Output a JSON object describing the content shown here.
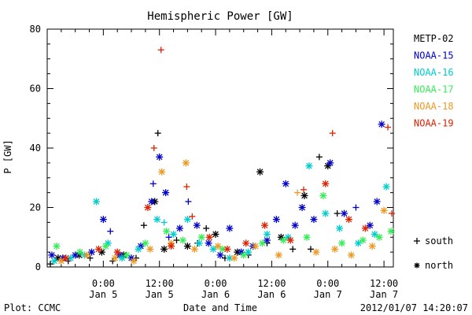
{
  "chart_data": {
    "type": "scatter",
    "title": "Hemispheric Power [GW]",
    "xlabel": "Date and Time",
    "ylabel": "P [GW]",
    "ylim": [
      0,
      80
    ],
    "yticks": [
      0,
      20,
      40,
      60,
      80
    ],
    "xlim": [
      "2012-01-04 12:00",
      "2012-01-07 14:00"
    ],
    "x_ticks": [
      {
        "at": "2012-01-05 00:00",
        "time": "0:00",
        "date": "Jan 5"
      },
      {
        "at": "2012-01-05 12:00",
        "time": "12:00",
        "date": "Jan 5"
      },
      {
        "at": "2012-01-06 00:00",
        "time": "0:00",
        "date": "Jan 6"
      },
      {
        "at": "2012-01-06 12:00",
        "time": "12:00",
        "date": "Jan 6"
      },
      {
        "at": "2012-01-07 00:00",
        "time": "0:00",
        "date": "Jan 7"
      },
      {
        "at": "2012-01-07 12:00",
        "time": "12:00",
        "date": "Jan 7"
      }
    ],
    "legend_position": "right",
    "symbol_legend": [
      {
        "symbol": "+",
        "label": "south"
      },
      {
        "symbol": "*",
        "label": "north"
      }
    ],
    "series": [
      {
        "name": "METP-02",
        "color": "#000000",
        "points": [
          [
            "2012-01-04 12:40",
            1,
            "+"
          ],
          [
            "2012-01-04 14:20",
            3,
            "*"
          ],
          [
            "2012-01-04 16:30",
            2,
            "+"
          ],
          [
            "2012-01-04 18:50",
            4,
            "*"
          ],
          [
            "2012-01-04 21:10",
            3,
            "+"
          ],
          [
            "2012-01-04 23:40",
            5,
            "*"
          ],
          [
            "2012-01-05 02:00",
            2,
            "+"
          ],
          [
            "2012-01-05 04:20",
            4,
            "*"
          ],
          [
            "2012-01-05 07:00",
            3,
            "+"
          ],
          [
            "2012-01-05 08:40",
            14,
            "+"
          ],
          [
            "2012-01-05 11:00",
            22,
            "*"
          ],
          [
            "2012-01-05 11:40",
            45,
            "+"
          ],
          [
            "2012-01-05 13:00",
            6,
            "*"
          ],
          [
            "2012-01-05 15:40",
            9,
            "+"
          ],
          [
            "2012-01-05 18:00",
            7,
            "*"
          ],
          [
            "2012-01-05 20:10",
            8,
            "+"
          ],
          [
            "2012-01-05 22:00",
            13,
            "+"
          ],
          [
            "2012-01-06 00:00",
            11,
            "*"
          ],
          [
            "2012-01-06 02:00",
            3,
            "+"
          ],
          [
            "2012-01-06 04:40",
            5,
            "*"
          ],
          [
            "2012-01-06 07:00",
            4,
            "+"
          ],
          [
            "2012-01-06 09:30",
            32,
            "*"
          ],
          [
            "2012-01-06 11:00",
            8,
            "+"
          ],
          [
            "2012-01-06 14:00",
            10,
            "*"
          ],
          [
            "2012-01-06 16:30",
            6,
            "+"
          ],
          [
            "2012-01-06 19:00",
            24,
            "*"
          ],
          [
            "2012-01-06 20:20",
            6,
            "+"
          ],
          [
            "2012-01-06 22:10",
            37,
            "+"
          ],
          [
            "2012-01-07 00:00",
            34,
            "*"
          ],
          [
            "2012-01-07 02:00",
            18,
            "+"
          ]
        ]
      },
      {
        "name": "NOAA-15",
        "color": "#0000cc",
        "points": [
          [
            "2012-01-04 13:00",
            4,
            "*"
          ],
          [
            "2012-01-04 15:20",
            3,
            "*"
          ],
          [
            "2012-01-04 18:00",
            4,
            "*"
          ],
          [
            "2012-01-04 21:30",
            5,
            "*"
          ],
          [
            "2012-01-05 00:00",
            16,
            "*"
          ],
          [
            "2012-01-05 01:30",
            12,
            "+"
          ],
          [
            "2012-01-05 03:30",
            4,
            "*"
          ],
          [
            "2012-01-05 06:00",
            3,
            "*"
          ],
          [
            "2012-01-05 08:00",
            7,
            "*"
          ],
          [
            "2012-01-05 10:20",
            22,
            "*"
          ],
          [
            "2012-01-05 10:40",
            28,
            "+"
          ],
          [
            "2012-01-05 12:00",
            37,
            "*"
          ],
          [
            "2012-01-05 13:20",
            25,
            "*"
          ],
          [
            "2012-01-05 14:00",
            10,
            "+"
          ],
          [
            "2012-01-05 16:20",
            13,
            "*"
          ],
          [
            "2012-01-05 18:10",
            22,
            "+"
          ],
          [
            "2012-01-05 20:00",
            14,
            "*"
          ],
          [
            "2012-01-05 22:30",
            8,
            "*"
          ],
          [
            "2012-01-06 01:00",
            4,
            "*"
          ],
          [
            "2012-01-06 03:00",
            13,
            "*"
          ],
          [
            "2012-01-06 05:30",
            5,
            "*"
          ],
          [
            "2012-01-06 08:00",
            7,
            "*"
          ],
          [
            "2012-01-06 11:00",
            9,
            "*"
          ],
          [
            "2012-01-06 13:00",
            16,
            "*"
          ],
          [
            "2012-01-06 15:00",
            28,
            "*"
          ],
          [
            "2012-01-06 17:00",
            14,
            "*"
          ],
          [
            "2012-01-06 18:30",
            20,
            "*"
          ],
          [
            "2012-01-06 21:00",
            16,
            "*"
          ],
          [
            "2012-01-07 00:30",
            35,
            "*"
          ],
          [
            "2012-01-07 03:30",
            18,
            "*"
          ],
          [
            "2012-01-07 06:00",
            20,
            "+"
          ],
          [
            "2012-01-07 09:00",
            14,
            "*"
          ],
          [
            "2012-01-07 10:30",
            22,
            "*"
          ],
          [
            "2012-01-07 11:30",
            48,
            "*"
          ]
        ]
      },
      {
        "name": "NOAA-16",
        "color": "#00cccc",
        "points": [
          [
            "2012-01-04 13:30",
            2,
            "*"
          ],
          [
            "2012-01-04 17:00",
            3,
            "*"
          ],
          [
            "2012-01-04 20:00",
            4,
            "*"
          ],
          [
            "2012-01-04 22:30",
            22,
            "*"
          ],
          [
            "2012-01-05 01:00",
            8,
            "*"
          ],
          [
            "2012-01-05 04:00",
            3,
            "*"
          ],
          [
            "2012-01-05 07:30",
            6,
            "*"
          ],
          [
            "2012-01-05 11:30",
            16,
            "*"
          ],
          [
            "2012-01-05 13:00",
            15,
            "+"
          ],
          [
            "2012-01-05 15:00",
            11,
            "*"
          ],
          [
            "2012-01-05 18:00",
            16,
            "*"
          ],
          [
            "2012-01-05 20:30",
            8,
            "*"
          ],
          [
            "2012-01-05 23:30",
            6,
            "*"
          ],
          [
            "2012-01-06 03:00",
            3,
            "*"
          ],
          [
            "2012-01-06 07:00",
            5,
            "*"
          ],
          [
            "2012-01-06 11:00",
            11,
            "*"
          ],
          [
            "2012-01-06 15:30",
            10,
            "*"
          ],
          [
            "2012-01-06 20:00",
            34,
            "*"
          ],
          [
            "2012-01-06 23:30",
            18,
            "*"
          ],
          [
            "2012-01-07 02:30",
            13,
            "*"
          ],
          [
            "2012-01-07 06:30",
            8,
            "*"
          ],
          [
            "2012-01-07 10:00",
            11,
            "*"
          ],
          [
            "2012-01-07 12:30",
            27,
            "*"
          ]
        ]
      },
      {
        "name": "NOAA-17",
        "color": "#33ee55",
        "points": [
          [
            "2012-01-04 14:00",
            7,
            "*"
          ],
          [
            "2012-01-04 19:00",
            5,
            "*"
          ],
          [
            "2012-01-05 00:30",
            7,
            "*"
          ],
          [
            "2012-01-05 05:00",
            4,
            "*"
          ],
          [
            "2012-01-05 09:00",
            8,
            "*"
          ],
          [
            "2012-01-05 13:30",
            12,
            "*"
          ],
          [
            "2012-01-05 17:00",
            9,
            "*"
          ],
          [
            "2012-01-05 21:00",
            10,
            "*"
          ],
          [
            "2012-01-06 01:30",
            6,
            "*"
          ],
          [
            "2012-01-06 06:00",
            4,
            "*"
          ],
          [
            "2012-01-06 10:00",
            8,
            "*"
          ],
          [
            "2012-01-06 14:30",
            9,
            "*"
          ],
          [
            "2012-01-06 19:30",
            10,
            "*"
          ],
          [
            "2012-01-06 23:00",
            24,
            "*"
          ],
          [
            "2012-01-07 03:00",
            8,
            "*"
          ],
          [
            "2012-01-07 07:30",
            9,
            "*"
          ],
          [
            "2012-01-07 11:00",
            10,
            "*"
          ],
          [
            "2012-01-07 13:30",
            12,
            "*"
          ]
        ]
      },
      {
        "name": "NOAA-18",
        "color": "#ee9922",
        "points": [
          [
            "2012-01-04 15:00",
            2,
            "*"
          ],
          [
            "2012-01-04 20:30",
            4,
            "*"
          ],
          [
            "2012-01-05 02:30",
            3,
            "*"
          ],
          [
            "2012-01-05 06:30",
            2,
            "*"
          ],
          [
            "2012-01-05 10:00",
            6,
            "*"
          ],
          [
            "2012-01-05 12:30",
            32,
            "*"
          ],
          [
            "2012-01-05 14:30",
            8,
            "*"
          ],
          [
            "2012-01-05 17:40",
            35,
            "*"
          ],
          [
            "2012-01-05 19:30",
            6,
            "*"
          ],
          [
            "2012-01-06 00:30",
            7,
            "*"
          ],
          [
            "2012-01-06 04:00",
            3,
            "*"
          ],
          [
            "2012-01-06 08:30",
            7,
            "*"
          ],
          [
            "2012-01-06 13:30",
            4,
            "*"
          ],
          [
            "2012-01-06 17:30",
            25,
            "+"
          ],
          [
            "2012-01-06 21:30",
            5,
            "*"
          ],
          [
            "2012-01-07 01:30",
            6,
            "*"
          ],
          [
            "2012-01-07 05:00",
            4,
            "*"
          ],
          [
            "2012-01-07 09:30",
            7,
            "*"
          ],
          [
            "2012-01-07 12:00",
            19,
            "*"
          ]
        ]
      },
      {
        "name": "NOAA-19",
        "color": "#dd2200",
        "points": [
          [
            "2012-01-04 16:00",
            3,
            "*"
          ],
          [
            "2012-01-04 23:00",
            6,
            "*"
          ],
          [
            "2012-01-05 03:00",
            5,
            "*"
          ],
          [
            "2012-01-05 09:30",
            20,
            "*"
          ],
          [
            "2012-01-05 10:50",
            40,
            "+"
          ],
          [
            "2012-01-05 12:20",
            73,
            "+"
          ],
          [
            "2012-01-05 14:30",
            7,
            "*"
          ],
          [
            "2012-01-05 17:50",
            27,
            "+"
          ],
          [
            "2012-01-05 19:00",
            17,
            "+"
          ],
          [
            "2012-01-05 22:40",
            10,
            "*"
          ],
          [
            "2012-01-06 02:30",
            6,
            "*"
          ],
          [
            "2012-01-06 06:30",
            8,
            "*"
          ],
          [
            "2012-01-06 10:30",
            14,
            "*"
          ],
          [
            "2012-01-06 16:00",
            9,
            "*"
          ],
          [
            "2012-01-06 18:50",
            26,
            "+"
          ],
          [
            "2012-01-06 23:30",
            28,
            "*"
          ],
          [
            "2012-01-07 01:00",
            45,
            "+"
          ],
          [
            "2012-01-07 04:30",
            16,
            "*"
          ],
          [
            "2012-01-07 08:00",
            13,
            "*"
          ],
          [
            "2012-01-07 12:50",
            47,
            "+"
          ],
          [
            "2012-01-07 13:40",
            18,
            "+"
          ]
        ]
      }
    ]
  },
  "footer": {
    "left": "Plot: CCMC",
    "center": "Date and Time",
    "right": "2012/01/07 14:20:07"
  }
}
